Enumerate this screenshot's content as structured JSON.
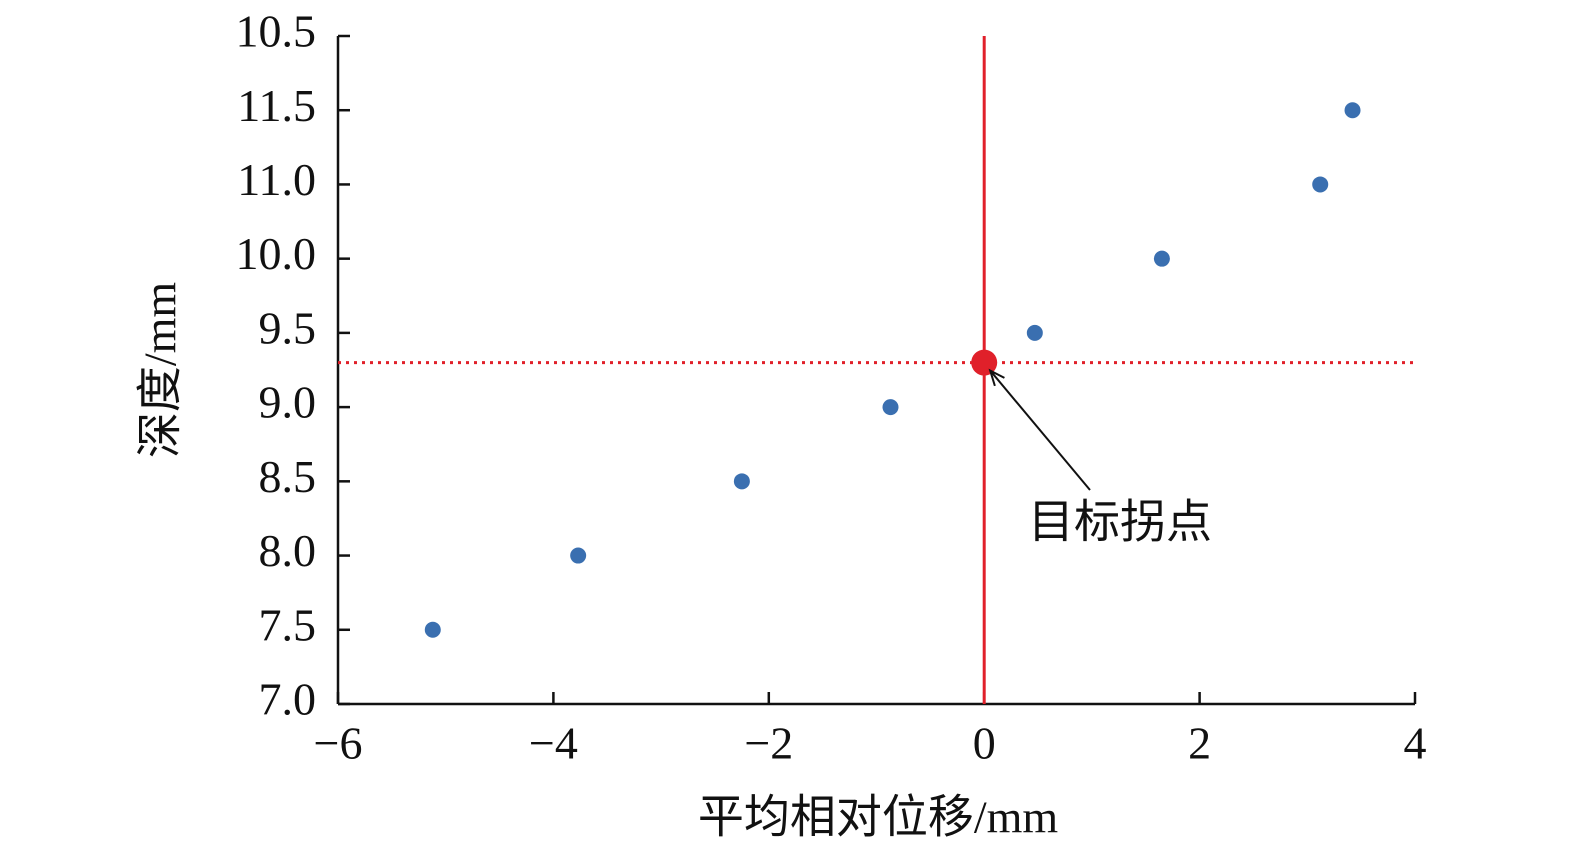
{
  "chart_data": {
    "type": "scatter",
    "xlabel": "平均相对位移/mm",
    "ylabel": "深度/mm",
    "x": [
      -5.12,
      -3.77,
      -2.25,
      -0.87,
      0.47,
      1.65,
      3.12,
      3.42
    ],
    "y": [
      7.5,
      8.0,
      8.5,
      9.0,
      9.5,
      10.0,
      11.0,
      11.5
    ],
    "color": "#3a6fb0",
    "xlim": [
      -6,
      4
    ],
    "xticks": [
      {
        "value": -6,
        "label": "−6"
      },
      {
        "value": -4,
        "label": "−4"
      },
      {
        "value": -2,
        "label": "−2"
      },
      0,
      2,
      4
    ],
    "yticks": [
      {
        "value": 7,
        "label": "7.0"
      },
      7.5,
      {
        "value": 8,
        "label": "8.0"
      },
      8.5,
      {
        "value": 9,
        "label": "9.0"
      },
      9.5,
      {
        "value": 10,
        "label": "10.0"
      },
      {
        "value": 11,
        "label": "11.0"
      },
      11.5,
      10.5
    ],
    "highlight": {
      "x": 0,
      "y": 9.3,
      "color": "#e0202a",
      "annotation": "目标拐点"
    }
  }
}
